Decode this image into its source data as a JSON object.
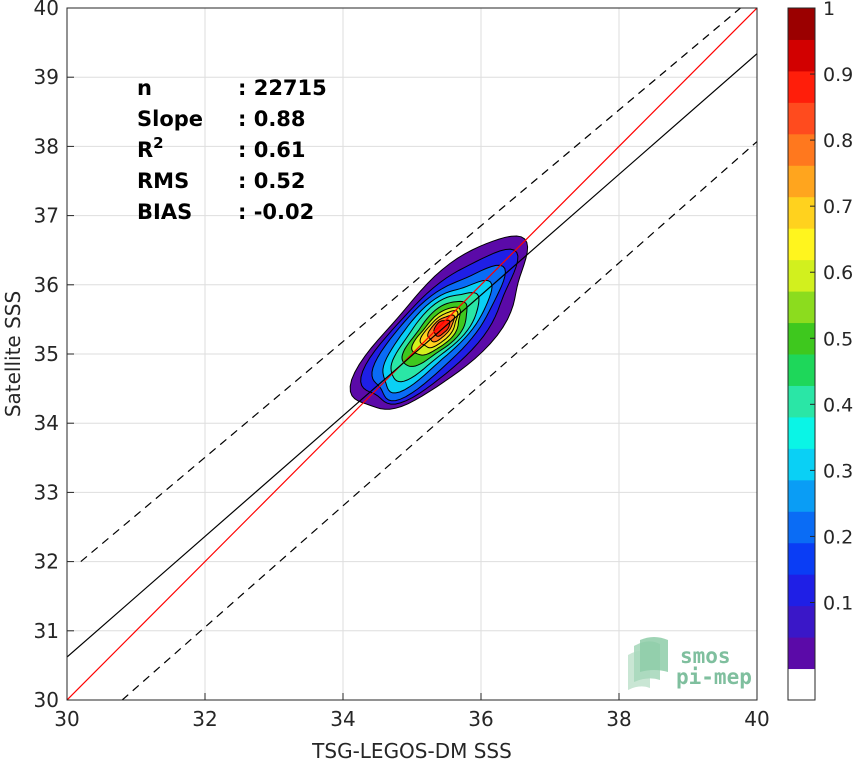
{
  "chart_data": {
    "type": "contour-scatter-density",
    "xlabel": "TSG-LEGOS-DM SSS",
    "ylabel": "Satellite SSS",
    "xlim": [
      30,
      40
    ],
    "ylim": [
      30,
      40
    ],
    "xticks": [
      "30",
      "32",
      "34",
      "36",
      "38",
      "40"
    ],
    "yticks": [
      "30",
      "31",
      "32",
      "33",
      "34",
      "35",
      "36",
      "37",
      "38",
      "39",
      "40"
    ],
    "grid": true,
    "stats": [
      {
        "label": "n",
        "value": ": 22715"
      },
      {
        "label": "Slope",
        "value": ": 0.88"
      },
      {
        "label": "R",
        "sup": "2",
        "value": ": 0.61"
      },
      {
        "label": "RMS",
        "value": ": 0.52"
      },
      {
        "label": "BIAS",
        "value": ": -0.02"
      }
    ],
    "lines": [
      {
        "kind": "identity",
        "color": "#ff0000",
        "x": [
          30,
          40
        ],
        "y": [
          30,
          40
        ]
      },
      {
        "kind": "regression",
        "color": "#000000",
        "x": [
          30,
          40
        ],
        "y": [
          30.62,
          39.34
        ]
      },
      {
        "kind": "upper-bound",
        "color": "#000000",
        "dashed": true,
        "x": [
          30.2,
          40
        ],
        "y": [
          32.0,
          40.2
        ]
      },
      {
        "kind": "lower-bound",
        "color": "#000000",
        "dashed": true,
        "x": [
          30.8,
          40
        ],
        "y": [
          30.0,
          38.07
        ]
      }
    ],
    "density_center": [
      35.45,
      35.4
    ],
    "density_levels": [
      0.05,
      0.15,
      0.25,
      0.35,
      0.45,
      0.55,
      0.65,
      0.75,
      0.85,
      0.95
    ],
    "colorbar": {
      "range": [
        0,
        1
      ],
      "ticks": [
        "0.1",
        "0.2",
        "0.3",
        "0.4",
        "0.5",
        "0.6",
        "0.7",
        "0.8",
        "0.9",
        "1"
      ],
      "colors": [
        "#ffffff",
        "#5b0aa8",
        "#3a17c8",
        "#1f1fe6",
        "#0a3df5",
        "#0a6cf5",
        "#0a9df5",
        "#0ad0f5",
        "#0af5e6",
        "#2ae6a6",
        "#1ed75a",
        "#3ec81e",
        "#8cdc1e",
        "#d2f01e",
        "#fff51e",
        "#ffd21e",
        "#ffa51e",
        "#ff781e",
        "#ff4b1e",
        "#ff1e0a",
        "#d20000",
        "#9b0000"
      ]
    }
  },
  "logo": {
    "line1": "smos",
    "line2": "pi-mep"
  }
}
